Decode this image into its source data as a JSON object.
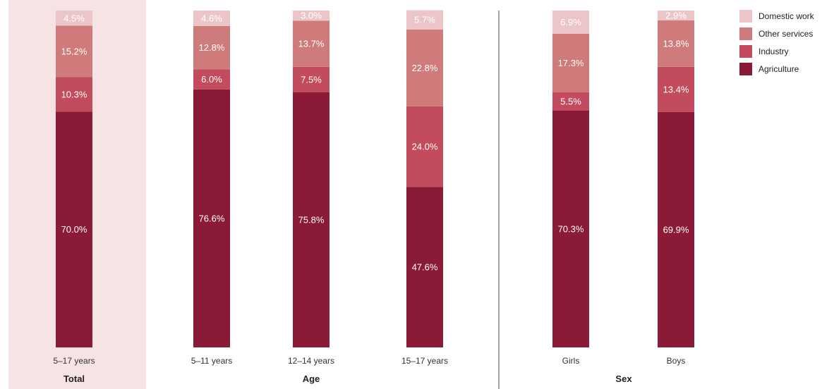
{
  "chart_data": {
    "type": "bar",
    "stacked": true,
    "normalized_percent": true,
    "categories": [
      "5–17 years",
      "5–11 years",
      "12–14 years",
      "15–17 years",
      "Girls",
      "Boys"
    ],
    "groups": [
      {
        "label": "Total",
        "categories": [
          "5–17 years"
        ],
        "highlighted": true
      },
      {
        "label": "Age",
        "categories": [
          "5–11 years",
          "12–14 years",
          "15–17 years"
        ]
      },
      {
        "label": "Sex",
        "categories": [
          "Girls",
          "Boys"
        ]
      }
    ],
    "series": [
      {
        "name": "Agriculture",
        "color": "#8b1a36",
        "values": [
          70.0,
          76.6,
          75.8,
          47.6,
          70.3,
          69.9
        ],
        "labels": [
          "70.0%",
          "76.6%",
          "75.8%",
          "47.6%",
          "70.3%",
          "69.9%"
        ]
      },
      {
        "name": "Industry",
        "color": "#c24c5e",
        "values": [
          10.3,
          6.0,
          7.5,
          24.0,
          5.5,
          13.4
        ],
        "labels": [
          "10.3%",
          "6.0%",
          "7.5%",
          "24.0%",
          "5.5%",
          "13.4%"
        ]
      },
      {
        "name": "Other services",
        "color": "#cf7b7c",
        "values": [
          15.2,
          12.8,
          13.7,
          22.8,
          17.3,
          13.8
        ],
        "labels": [
          "15.2%",
          "12.8%",
          "13.7%",
          "22.8%",
          "17.3%",
          "13.8%"
        ]
      },
      {
        "name": "Domestic work",
        "color": "#ecc5c8",
        "values": [
          4.5,
          4.6,
          3.0,
          5.7,
          6.9,
          2.9
        ],
        "labels": [
          "4.5%",
          "4.6%",
          "3.0%",
          "5.7%",
          "6.9%",
          "2.9%"
        ]
      }
    ],
    "legend": [
      "Domestic work",
      "Other services",
      "Industry",
      "Agriculture"
    ],
    "legend_position": "top-right",
    "ylim": [
      0,
      100
    ],
    "grid": false,
    "colors": {
      "highlight_background": "#f6e4e4",
      "separator": "#444444",
      "segment_text": "#ffffff"
    }
  }
}
